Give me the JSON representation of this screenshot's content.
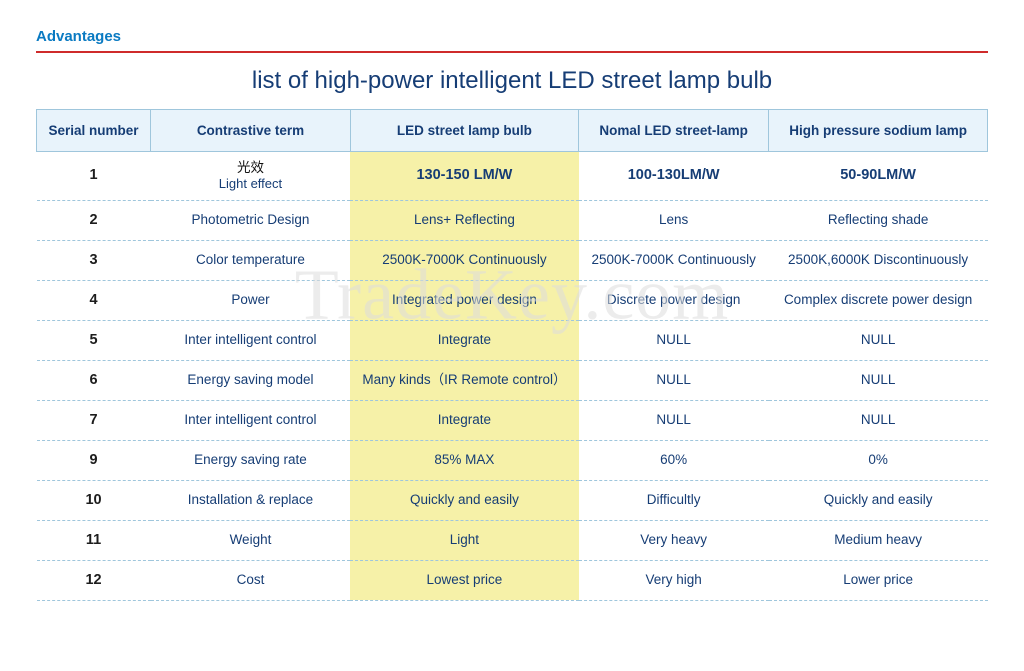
{
  "section_label": "Advantages",
  "title": "list of high-power intelligent LED street lamp bulb",
  "watermark": "TradeKey.com",
  "colors": {
    "accent_blue": "#0a7ac2",
    "rule_red": "#cf2b2b",
    "text_navy": "#163d75",
    "header_bg": "#e8f3fb",
    "header_border": "#9fc6dc",
    "highlight_bg": "#f6f1a8",
    "row_divider": "#9fc6dc",
    "serial_color": "#1d1d1d",
    "watermark_color": "#dddddd",
    "background": "#ffffff"
  },
  "typography": {
    "section_label_fontsize": 15,
    "title_fontsize": 24,
    "header_fontsize": 13.5,
    "cell_fontsize": 13.5,
    "first_row_fontsize": 14.5,
    "watermark_fontsize": 72
  },
  "table": {
    "type": "table",
    "highlight_column_index": 2,
    "column_widths_pct": [
      12,
      21,
      24,
      20,
      23
    ],
    "columns": [
      "Serial number",
      "Contrastive term",
      "LED street lamp bulb",
      "Nomal LED street-lamp",
      "High pressure sodium lamp"
    ],
    "rows": [
      {
        "serial": "1",
        "term_cn": "光效",
        "term": "Light effect",
        "led": "130-150 LM/W",
        "normal": "100-130LM/W",
        "sodium": "50-90LM/W"
      },
      {
        "serial": "2",
        "term": "Photometric Design",
        "led": "Lens+ Reflecting",
        "normal": "Lens",
        "sodium": "Reflecting shade"
      },
      {
        "serial": "3",
        "term": "Color temperature",
        "led": "2500K-7000K Continuously",
        "normal": "2500K-7000K Continuously",
        "sodium": "2500K,6000K Discontinuously"
      },
      {
        "serial": "4",
        "term": "Power",
        "led": "Integrated power design",
        "normal": "Discrete power design",
        "sodium": "Complex discrete power design"
      },
      {
        "serial": "5",
        "term": "Inter intelligent control",
        "led": "Integrate",
        "normal": "NULL",
        "sodium": "NULL"
      },
      {
        "serial": "6",
        "term": "Energy saving model",
        "led": "Many kinds（IR Remote control）",
        "normal": "NULL",
        "sodium": "NULL"
      },
      {
        "serial": "7",
        "term": "Inter intelligent control",
        "led": "Integrate",
        "normal": "NULL",
        "sodium": "NULL"
      },
      {
        "serial": "9",
        "term": "Energy saving rate",
        "led": "85% MAX",
        "normal": "60%",
        "sodium": "0%"
      },
      {
        "serial": "10",
        "term": "Installation & replace",
        "led": "Quickly and easily",
        "normal": "Difficultly",
        "sodium": "Quickly and easily"
      },
      {
        "serial": "11",
        "term": "Weight",
        "led": "Light",
        "normal": "Very heavy",
        "sodium": "Medium heavy"
      },
      {
        "serial": "12",
        "term": "Cost",
        "led": "Lowest price",
        "normal": "Very high",
        "sodium": "Lower price"
      }
    ]
  }
}
